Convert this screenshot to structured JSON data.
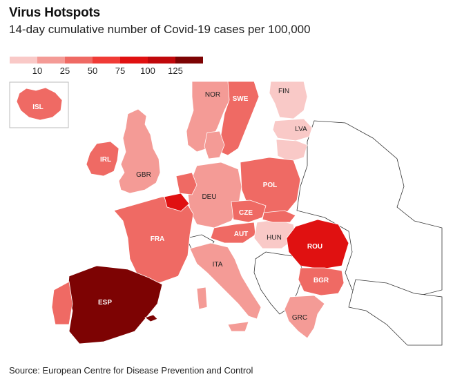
{
  "title": "Virus Hotspots",
  "subtitle": "14-day cumulative number of Covid-19 cases per 100,000",
  "source": "Source: European Centre for Disease Prevention and Control",
  "legend": {
    "ticks": [
      "10",
      "25",
      "50",
      "75",
      "100",
      "125"
    ],
    "colors": [
      "#f9c9c7",
      "#f49b96",
      "#ef6a64",
      "#f03b36",
      "#e01111",
      "#c0080b",
      "#7d0303"
    ]
  },
  "countries": {
    "ISL": {
      "label": "ISL",
      "color": "#ef6a64"
    },
    "IRL": {
      "label": "IRL",
      "color": "#ef6a64"
    },
    "GBR": {
      "label": "GBR",
      "color": "#f49b96"
    },
    "NOR": {
      "label": "NOR",
      "color": "#f49b96"
    },
    "SWE": {
      "label": "SWE",
      "color": "#ef6a64"
    },
    "FIN": {
      "label": "FIN",
      "color": "#f9c9c7"
    },
    "LVA": {
      "label": "LVA",
      "color": "#f9c9c7"
    },
    "DEU": {
      "label": "DEU",
      "color": "#f49b96"
    },
    "POL": {
      "label": "POL",
      "color": "#ef6a64"
    },
    "CZE": {
      "label": "CZE",
      "color": "#ef6a64"
    },
    "AUT": {
      "label": "AUT",
      "color": "#ef6a64"
    },
    "HUN": {
      "label": "HUN",
      "color": "#f9c9c7"
    },
    "ROU": {
      "label": "ROU",
      "color": "#e01111"
    },
    "FRA": {
      "label": "FRA",
      "color": "#ef6a64"
    },
    "ITA": {
      "label": "ITA",
      "color": "#f49b96"
    },
    "BGR": {
      "label": "BGR",
      "color": "#ef6a64"
    },
    "GRC": {
      "label": "GRC",
      "color": "#f49b96"
    },
    "ESP": {
      "label": "ESP",
      "color": "#7d0303"
    }
  }
}
